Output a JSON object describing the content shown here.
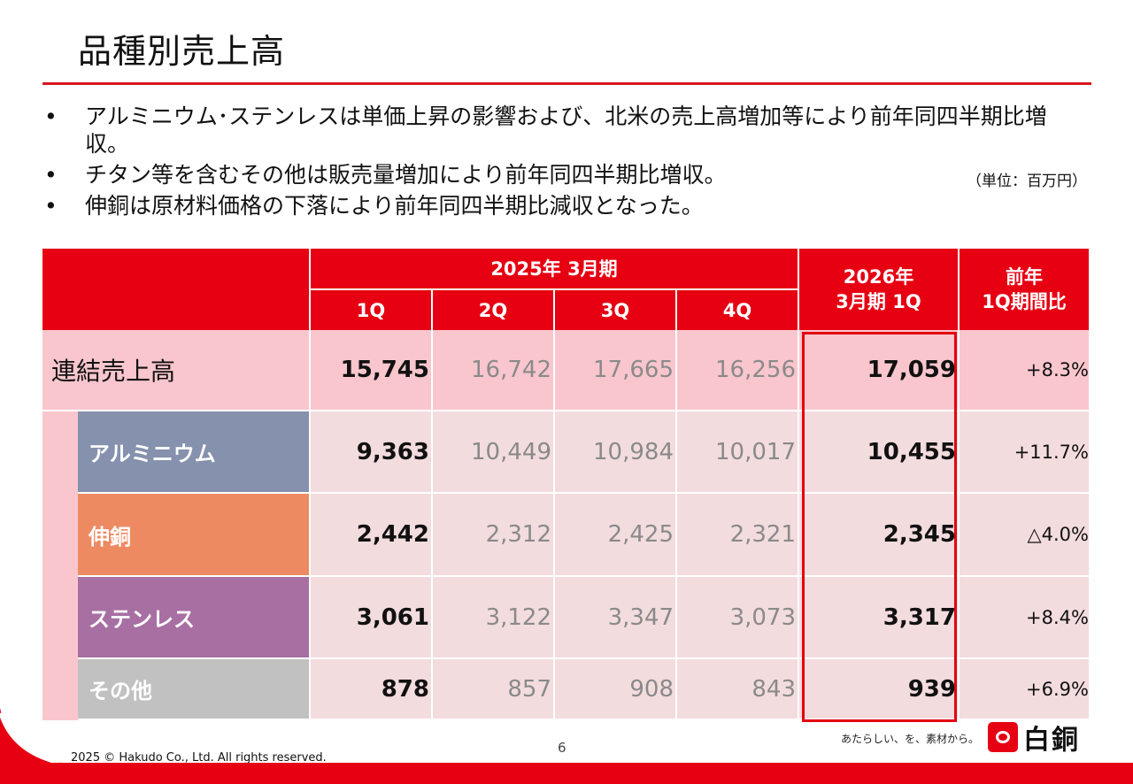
{
  "slide": {
    "title": "品種別売上高",
    "bullets": [
      "アルミニウム･ステンレスは単価上昇の影響および、北米の売上高増加等により前年同四半期比増収。",
      "チタン等を含むその他は販売量増加により前年同四半期比増収。",
      "伸銅は原材料価格の下落により前年同四半期比減収となった。"
    ],
    "bullet_mark": "•",
    "unit_note": "（単位：百万円）",
    "page_number": "6",
    "copyright": "2025 © Hakudo Co., Ltd. All rights reserved.",
    "tagline": "あたらしい、を、素材から。",
    "logo_text": "白銅"
  },
  "table": {
    "group_header": "2025年 3月期",
    "quarters": [
      "1Q",
      "2Q",
      "3Q",
      "4Q"
    ],
    "current_header": "2026年\n3月期 1Q",
    "ratio_header": "前年\n1Q期間比",
    "rows": [
      {
        "label": "連結売上高",
        "q": [
          "15,745",
          "16,742",
          "17,665",
          "16,256"
        ],
        "current": "17,059",
        "ratio": "+8.3%"
      },
      {
        "label": "アルミニウム",
        "q": [
          "9,363",
          "10,449",
          "10,984",
          "10,017"
        ],
        "current": "10,455",
        "ratio": "+11.7%",
        "color": "#8591ad"
      },
      {
        "label": "伸銅",
        "q": [
          "2,442",
          "2,312",
          "2,425",
          "2,321"
        ],
        "current": "2,345",
        "ratio": "△4.0%",
        "color": "#ee8a62"
      },
      {
        "label": "ステンレス",
        "q": [
          "3,061",
          "3,122",
          "3,347",
          "3,073"
        ],
        "current": "3,317",
        "ratio": "+8.4%",
        "color": "#a86fa3"
      },
      {
        "label": "その他",
        "q": [
          "878",
          "857",
          "908",
          "843"
        ],
        "current": "939",
        "ratio": "+6.9%",
        "color": "#c1c1c1"
      }
    ]
  },
  "colors": {
    "accent_red": "#e60012",
    "row_pink": "#f9c6cd",
    "row_light": "#f3dcde"
  }
}
